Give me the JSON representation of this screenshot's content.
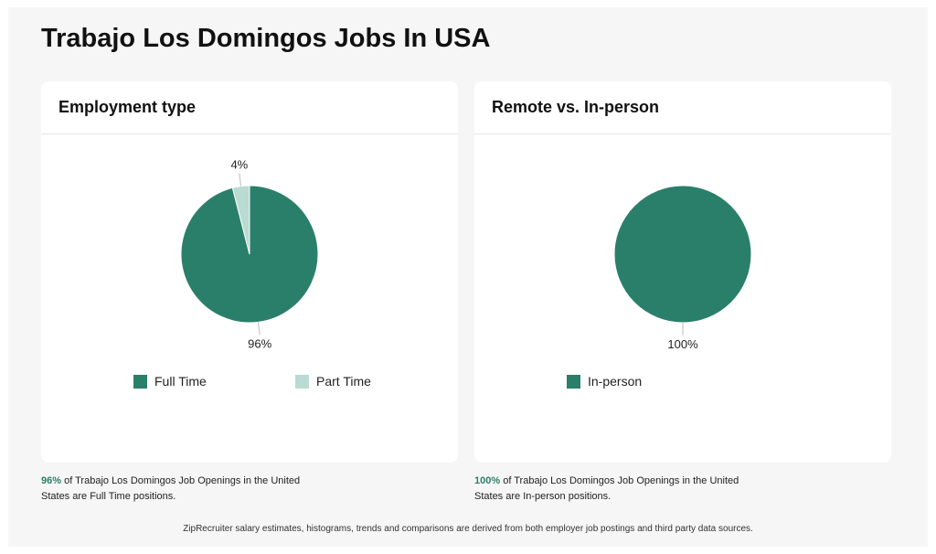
{
  "page": {
    "title": "Trabajo Los Domingos Jobs In USA"
  },
  "colors": {
    "full_time": "#2a7f6a",
    "part_time": "#b9dbd1",
    "in_person": "#2a7f6a",
    "leader": "#bdbdbd"
  },
  "chart_data": [
    {
      "type": "pie",
      "title": "Employment type",
      "categories": [
        "Full Time",
        "Part Time"
      ],
      "values": [
        96,
        4
      ],
      "data_labels": [
        "96%",
        "4%"
      ],
      "legend_position": "bottom"
    },
    {
      "type": "pie",
      "title": "Remote vs. In-person",
      "categories": [
        "In-person"
      ],
      "values": [
        100
      ],
      "data_labels": [
        "100%"
      ],
      "legend_position": "bottom"
    }
  ],
  "captions": {
    "employment": {
      "pct": "96%",
      "text": " of Trabajo Los Domingos Job Openings in the United States are Full Time positions."
    },
    "remote": {
      "pct": "100%",
      "text": " of Trabajo Los Domingos Job Openings in the United States are In-person positions."
    }
  },
  "footnote": "ZipRecruiter salary estimates, histograms, trends and comparisons are derived from both employer job postings and third party data sources."
}
